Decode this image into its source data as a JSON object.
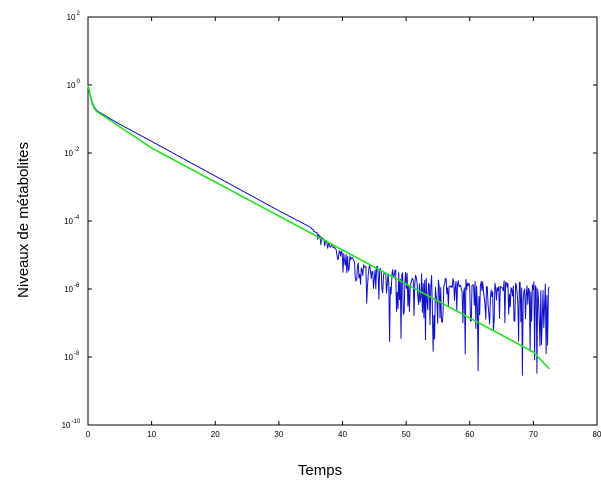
{
  "chart_data": {
    "type": "line",
    "title": "",
    "xlabel": "Temps",
    "ylabel": "Niveaux de métabolites",
    "xlim": [
      0,
      80
    ],
    "ylim": [
      1e-10,
      100
    ],
    "y_scale": "log",
    "grid": false,
    "x_ticks": [
      "0",
      "10",
      "20",
      "30",
      "40",
      "50",
      "60",
      "70",
      "80"
    ],
    "y_ticks": [
      {
        "base": "10",
        "exp": "2"
      },
      {
        "base": "10",
        "exp": "0"
      },
      {
        "base": "10",
        "exp": "-2"
      },
      {
        "base": "10",
        "exp": "-4"
      },
      {
        "base": "10",
        "exp": "-6"
      },
      {
        "base": "10",
        "exp": "-8"
      },
      {
        "base": "10",
        "exp": "-10"
      }
    ],
    "series": [
      {
        "color": "#1010c8",
        "style": "noisy",
        "x": [
          0,
          0.3,
          0.6,
          1,
          1.5,
          2,
          5,
          10,
          20,
          30,
          35,
          37,
          40,
          43,
          46,
          50,
          55,
          60,
          65,
          70,
          72.5
        ],
        "y": [
          1.0,
          0.6,
          0.35,
          0.22,
          0.17,
          0.15,
          0.07,
          0.022,
          0.0021,
          0.0002,
          6.5e-05,
          3e-05,
          1.1e-05,
          5e-06,
          3.3e-06,
          2.2e-06,
          1.6e-06,
          1.3e-06,
          1.2e-06,
          1.1e-06,
          1e-06
        ]
      },
      {
        "color": "#22e022",
        "style": "line",
        "x": [
          0,
          0.3,
          0.6,
          1,
          1.5,
          2,
          10,
          20,
          30,
          40,
          50,
          60,
          70,
          72.5
        ],
        "y": [
          1.0,
          0.55,
          0.3,
          0.2,
          0.16,
          0.14,
          0.014,
          0.0014,
          0.00014,
          1.4e-05,
          1.4e-06,
          1.4e-07,
          1.4e-08,
          4.5e-09
        ]
      }
    ]
  }
}
